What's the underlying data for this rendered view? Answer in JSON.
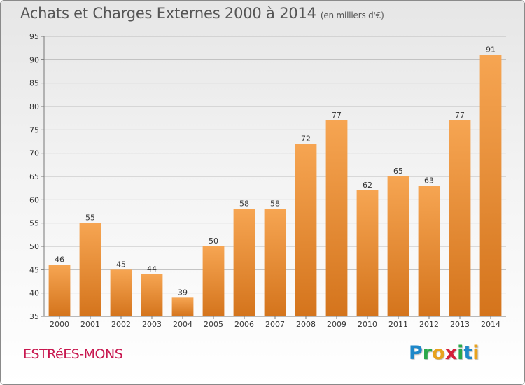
{
  "chart_data": {
    "type": "bar",
    "title": "Achats et Charges Externes 2000 à 2014",
    "subtitle": "(en milliers d'€)",
    "categories": [
      "2000",
      "2001",
      "2002",
      "2003",
      "2004",
      "2005",
      "2006",
      "2007",
      "2008",
      "2009",
      "2010",
      "2011",
      "2012",
      "2013",
      "2014"
    ],
    "values": [
      46,
      55,
      45,
      44,
      39,
      50,
      58,
      58,
      72,
      77,
      62,
      65,
      63,
      77,
      91
    ],
    "data_labels": [
      "46",
      "55",
      "45",
      "44",
      "39",
      "50",
      "58",
      "58",
      "72",
      "77",
      "62",
      "65",
      "63",
      "77",
      "91"
    ],
    "ylim": [
      35,
      95
    ],
    "yticks": [
      35,
      40,
      45,
      50,
      55,
      60,
      65,
      70,
      75,
      80,
      85,
      90,
      95
    ],
    "grid": true,
    "bar_color_top": "#f6a552",
    "bar_color_bottom": "#d4741c"
  },
  "footer": {
    "commune": "ESTRéES-MONS",
    "brand_letters": [
      {
        "ch": "P",
        "color": "#1f88c9"
      },
      {
        "ch": "r",
        "color": "#2aa84a"
      },
      {
        "ch": "o",
        "color": "#e8a21e"
      },
      {
        "ch": "x",
        "color": "#d4203a"
      },
      {
        "ch": "i",
        "color": "#2aa84a"
      },
      {
        "ch": "t",
        "color": "#1f88c9"
      },
      {
        "ch": "i",
        "color": "#e8a21e"
      }
    ]
  }
}
